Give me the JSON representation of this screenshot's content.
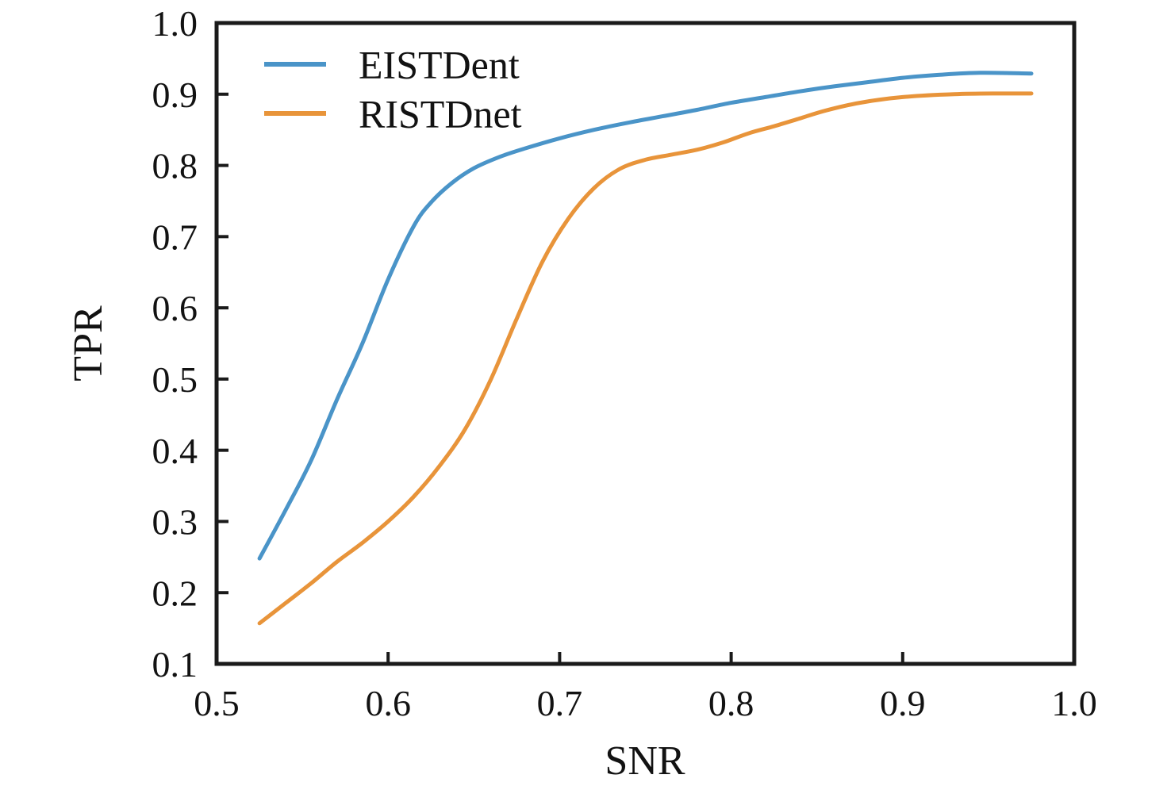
{
  "figure": {
    "background": "#ffffff",
    "axis_color": "#1a1a1a",
    "text_color": "#121212"
  },
  "chart_data": {
    "type": "line",
    "title": "",
    "xlabel": "SNR",
    "ylabel": "TPR",
    "xlim": [
      0.5,
      1.0
    ],
    "ylim": [
      0.1,
      1.0
    ],
    "xticks": [
      0.5,
      0.6,
      0.7,
      0.8,
      0.9,
      1.0
    ],
    "yticks": [
      0.1,
      0.2,
      0.3,
      0.4,
      0.5,
      0.6,
      0.7,
      0.8,
      0.9,
      1.0
    ],
    "tick_decimals": 1,
    "grid": false,
    "tick_direction": "in",
    "legend_position": "upper-left",
    "series": [
      {
        "name": "EISTDent",
        "color": "#4a94c8",
        "x": [
          0.525,
          0.54,
          0.555,
          0.57,
          0.585,
          0.6,
          0.615,
          0.625,
          0.637,
          0.65,
          0.665,
          0.68,
          0.7,
          0.72,
          0.74,
          0.76,
          0.78,
          0.8,
          0.82,
          0.84,
          0.86,
          0.88,
          0.9,
          0.92,
          0.945,
          0.975
        ],
        "y": [
          0.248,
          0.315,
          0.385,
          0.47,
          0.55,
          0.64,
          0.715,
          0.748,
          0.775,
          0.796,
          0.812,
          0.824,
          0.838,
          0.85,
          0.86,
          0.869,
          0.878,
          0.888,
          0.896,
          0.904,
          0.911,
          0.917,
          0.923,
          0.927,
          0.93,
          0.929
        ]
      },
      {
        "name": "RISTDnet",
        "color": "#e8943a",
        "x": [
          0.525,
          0.54,
          0.555,
          0.57,
          0.585,
          0.6,
          0.615,
          0.63,
          0.645,
          0.66,
          0.675,
          0.69,
          0.705,
          0.72,
          0.735,
          0.75,
          0.765,
          0.78,
          0.795,
          0.81,
          0.825,
          0.84,
          0.855,
          0.875,
          0.9,
          0.93,
          0.955,
          0.975
        ],
        "y": [
          0.157,
          0.185,
          0.213,
          0.243,
          0.27,
          0.3,
          0.335,
          0.378,
          0.43,
          0.5,
          0.585,
          0.665,
          0.725,
          0.768,
          0.795,
          0.808,
          0.815,
          0.822,
          0.832,
          0.845,
          0.855,
          0.866,
          0.877,
          0.888,
          0.896,
          0.9,
          0.901,
          0.901
        ]
      }
    ]
  }
}
